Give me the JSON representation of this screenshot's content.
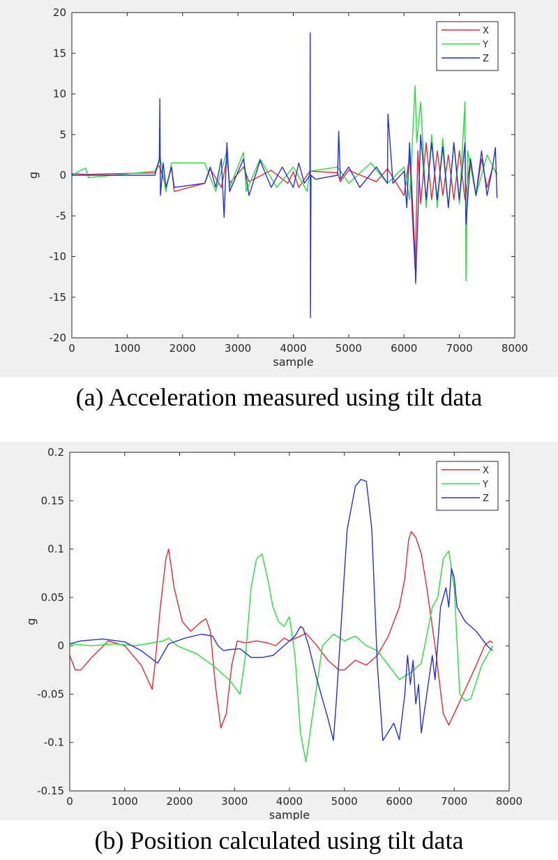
{
  "captions": {
    "a": "(a) Acceleration measured using tilt data",
    "b": "(b) Position calculated using tilt data"
  },
  "colors": {
    "X": "#e8272f",
    "Y": "#22e03a",
    "Z": "#2330d8"
  },
  "chart_data": [
    {
      "type": "line",
      "xlabel": "sample",
      "ylabel": "g",
      "xlim": [
        0,
        8000
      ],
      "ylim": [
        -20,
        20
      ],
      "xticks": [
        0,
        1000,
        2000,
        3000,
        4000,
        5000,
        6000,
        7000,
        8000
      ],
      "yticks": [
        -20,
        -15,
        -10,
        -5,
        0,
        5,
        10,
        15,
        20
      ],
      "legend_position": "top-right",
      "series": [
        {
          "name": "X",
          "x": [
            0,
            250,
            1500,
            1560,
            1600,
            1700,
            1800,
            1850,
            2400,
            2500,
            2700,
            2800,
            2850,
            3100,
            3200,
            3600,
            3900,
            4000,
            4100,
            4300,
            4800,
            4850,
            5000,
            5500,
            5700,
            6000,
            6100,
            6150,
            6200,
            6250,
            6300,
            6400,
            6500,
            6600,
            6700,
            6800,
            6900,
            7000,
            7100,
            7200,
            7300,
            7400,
            7500,
            7600,
            7680
          ],
          "y": [
            0.2,
            0.1,
            0.3,
            1.2,
            0.8,
            -1.5,
            1.0,
            -2.0,
            -1.0,
            0.8,
            -1.5,
            2.0,
            -1.0,
            1.0,
            -0.8,
            0.6,
            -1.0,
            0.4,
            -1.5,
            0.5,
            0.3,
            -0.8,
            0.6,
            -0.8,
            0.8,
            -2.5,
            2.5,
            -5.0,
            -11.5,
            3.0,
            -3.5,
            4.0,
            -3.0,
            3.0,
            -2.5,
            2.5,
            -3.0,
            3.0,
            -3.0,
            2.0,
            -2.5,
            2.0,
            -1.5,
            1.0,
            0.2
          ]
        },
        {
          "name": "Y",
          "x": [
            0,
            250,
            300,
            1500,
            1600,
            1700,
            1800,
            2400,
            2600,
            2800,
            2850,
            3100,
            3150,
            3400,
            3700,
            4000,
            4250,
            4300,
            4800,
            5000,
            5400,
            5700,
            6000,
            6100,
            6200,
            6230,
            6300,
            6400,
            6500,
            6600,
            6700,
            6800,
            6900,
            7000,
            7100,
            7120,
            7150,
            7300,
            7500,
            7680
          ],
          "y": [
            0.0,
            0.9,
            -0.3,
            0.5,
            2.0,
            -2.0,
            1.5,
            1.5,
            -2.0,
            3.0,
            -1.5,
            2.8,
            -2.0,
            2.0,
            -1.5,
            1.0,
            -2.0,
            0.5,
            1.0,
            -1.0,
            1.5,
            -1.0,
            1.0,
            -3.0,
            11.0,
            4.0,
            9.0,
            -4.0,
            5.0,
            -4.0,
            4.5,
            -4.0,
            4.0,
            -3.5,
            9.0,
            -13.0,
            3.0,
            -2.5,
            2.5,
            0.0
          ]
        },
        {
          "name": "Z",
          "x": [
            0,
            1500,
            1580,
            1590,
            1600,
            1650,
            1700,
            1800,
            1850,
            2400,
            2500,
            2600,
            2700,
            2750,
            2800,
            2850,
            3100,
            3200,
            3400,
            3600,
            3800,
            4000,
            4100,
            4200,
            4300,
            4305,
            4310,
            4320,
            4400,
            4800,
            4820,
            4850,
            5000,
            5200,
            5500,
            5700,
            5710,
            5800,
            6000,
            6050,
            6100,
            6200,
            6210,
            6300,
            6400,
            6500,
            6600,
            6700,
            6800,
            6900,
            7000,
            7100,
            7120,
            7200,
            7300,
            7400,
            7500,
            7600,
            7650,
            7680
          ],
          "y": [
            0.0,
            0.0,
            2.0,
            9.4,
            -2.5,
            1.5,
            -1.5,
            1.0,
            -1.5,
            -1.0,
            1.0,
            -1.5,
            2.0,
            -5.2,
            4.0,
            -2.0,
            2.0,
            -2.5,
            1.8,
            -1.5,
            1.0,
            -1.5,
            1.5,
            -1.0,
            0.0,
            17.5,
            -17.5,
            0.0,
            -0.5,
            0.0,
            5.4,
            -0.5,
            1.0,
            -1.5,
            1.0,
            -1.0,
            7.5,
            -1.0,
            0.5,
            -4.0,
            4.0,
            -10.0,
            -13.3,
            5.0,
            -3.0,
            4.0,
            -3.0,
            3.5,
            -4.0,
            4.0,
            -3.0,
            4.0,
            -6.0,
            2.0,
            -2.5,
            3.0,
            -2.5,
            1.0,
            3.4,
            -2.8
          ]
        }
      ]
    },
    {
      "type": "line",
      "xlabel": "sample",
      "ylabel": "g",
      "xlim": [
        0,
        8000
      ],
      "ylim": [
        -0.15,
        0.2
      ],
      "xticks": [
        0,
        1000,
        2000,
        3000,
        4000,
        5000,
        6000,
        7000,
        8000
      ],
      "yticks": [
        -0.15,
        -0.1,
        -0.05,
        0,
        0.05,
        0.1,
        0.15,
        0.2
      ],
      "ytick_labels": [
        "-0.15",
        "-0.1",
        "-0.05",
        "0",
        "0.05",
        "0.1",
        "0.15",
        "0.2"
      ],
      "legend_position": "top-right",
      "series": [
        {
          "name": "X",
          "x": [
            0,
            100,
            200,
            400,
            700,
            1000,
            1300,
            1500,
            1550,
            1650,
            1750,
            1800,
            1900,
            2050,
            2200,
            2400,
            2480,
            2560,
            2650,
            2750,
            2850,
            2950,
            3050,
            3200,
            3400,
            3600,
            3750,
            3900,
            4000,
            4200,
            4300,
            4500,
            4700,
            4900,
            5000,
            5200,
            5400,
            5600,
            5800,
            6000,
            6100,
            6170,
            6220,
            6300,
            6400,
            6500,
            6650,
            6800,
            6900,
            7000,
            7200,
            7400,
            7550,
            7650,
            7700
          ],
          "y": [
            -0.01,
            -0.025,
            -0.025,
            -0.012,
            0.005,
            0.0,
            -0.02,
            -0.045,
            -0.02,
            0.04,
            0.09,
            0.1,
            0.06,
            0.025,
            0.015,
            0.025,
            0.028,
            0.015,
            -0.04,
            -0.085,
            -0.07,
            -0.02,
            0.005,
            0.003,
            0.005,
            0.003,
            0.0,
            0.008,
            0.005,
            0.01,
            0.013,
            0.0,
            -0.015,
            -0.025,
            -0.025,
            -0.015,
            -0.02,
            -0.01,
            0.01,
            0.04,
            0.07,
            0.11,
            0.118,
            0.112,
            0.095,
            0.06,
            0.0,
            -0.07,
            -0.082,
            -0.07,
            -0.045,
            -0.02,
            0.0,
            0.005,
            0.003
          ]
        },
        {
          "name": "Y",
          "x": [
            0,
            400,
            800,
            1200,
            1500,
            1700,
            1800,
            1950,
            2300,
            2600,
            2900,
            3100,
            3200,
            3300,
            3400,
            3500,
            3600,
            3700,
            3800,
            3900,
            4000,
            4100,
            4200,
            4300,
            4400,
            4600,
            4800,
            5000,
            5200,
            5400,
            5600,
            5800,
            6000,
            6200,
            6400,
            6600,
            6700,
            6800,
            6900,
            7000,
            7100,
            7200,
            7300,
            7500,
            7700
          ],
          "y": [
            0.002,
            0.0,
            0.002,
            0.0,
            0.003,
            0.005,
            0.008,
            0.0,
            -0.008,
            -0.02,
            -0.035,
            -0.05,
            -0.01,
            0.06,
            0.09,
            0.095,
            0.07,
            0.04,
            0.025,
            0.02,
            0.03,
            -0.01,
            -0.09,
            -0.12,
            -0.08,
            0.0,
            0.012,
            0.005,
            0.01,
            0.0,
            -0.005,
            -0.02,
            -0.035,
            -0.028,
            -0.018,
            0.04,
            0.05,
            0.09,
            0.098,
            0.06,
            -0.05,
            -0.057,
            -0.055,
            -0.02,
            0.0
          ]
        },
        {
          "name": "Z",
          "x": [
            0,
            200,
            600,
            1000,
            1300,
            1600,
            1800,
            2100,
            2400,
            2600,
            2700,
            2800,
            2900,
            3100,
            3300,
            3500,
            3700,
            3900,
            4100,
            4200,
            4250,
            4350,
            4500,
            4700,
            4800,
            4850,
            4950,
            5050,
            5200,
            5300,
            5400,
            5500,
            5600,
            5700,
            5900,
            6000,
            6100,
            6150,
            6200,
            6250,
            6300,
            6350,
            6400,
            6500,
            6600,
            6650,
            6750,
            6850,
            6900,
            6950,
            7000,
            7050,
            7100,
            7200,
            7400,
            7600,
            7700
          ],
          "y": [
            0.002,
            0.005,
            0.007,
            0.004,
            -0.005,
            -0.018,
            0.002,
            0.008,
            0.012,
            0.01,
            0.0,
            -0.005,
            -0.004,
            -0.003,
            -0.012,
            -0.012,
            -0.01,
            0.0,
            0.01,
            0.02,
            0.018,
            0.0,
            -0.035,
            -0.075,
            -0.098,
            -0.06,
            0.03,
            0.12,
            0.165,
            0.172,
            0.17,
            0.12,
            -0.02,
            -0.098,
            -0.08,
            -0.097,
            -0.05,
            -0.01,
            -0.04,
            -0.015,
            -0.06,
            -0.04,
            -0.09,
            -0.05,
            -0.01,
            -0.035,
            0.04,
            0.06,
            0.04,
            0.08,
            0.07,
            0.04,
            0.035,
            0.025,
            0.015,
            0.0,
            -0.005
          ]
        }
      ]
    }
  ]
}
